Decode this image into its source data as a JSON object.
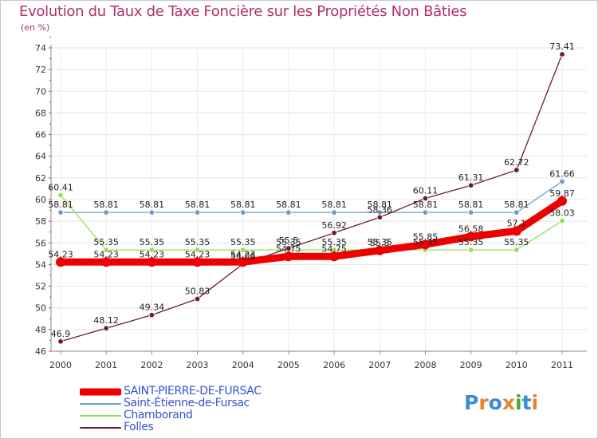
{
  "header": {
    "title": "Evolution du Taux de Taxe Foncière sur les Propriétés Non Bâties",
    "subtitle": "(en %)"
  },
  "chart_data": {
    "type": "line",
    "title": "Evolution du Taux de Taxe Foncière sur les Propriétés Non Bâties",
    "ylabel": "(en %)",
    "xlabel": "",
    "x": [
      "2000",
      "2001",
      "2002",
      "2003",
      "2004",
      "2005",
      "2006",
      "2007",
      "2008",
      "2009",
      "2010",
      "2011"
    ],
    "ylim": [
      46,
      74
    ],
    "yticks": [
      46,
      48,
      50,
      52,
      54,
      56,
      58,
      60,
      62,
      64,
      66,
      68,
      70,
      72,
      74
    ],
    "grid": true,
    "legend_position": "bottom-left",
    "series": [
      {
        "name": "Saint-Étienne-de-Fursac",
        "color": "#6a9ed2",
        "values": [
          58.81,
          58.81,
          58.81,
          58.81,
          58.81,
          58.81,
          58.81,
          58.81,
          58.81,
          58.81,
          58.81,
          61.66
        ],
        "labels": [
          "58.81",
          "58.81",
          "58.81",
          "58.81",
          "58.81",
          "58.81",
          "58.81",
          "58.81",
          "58.81",
          "58.81",
          "58.81",
          "61.66"
        ]
      },
      {
        "name": "Chamborand",
        "color": "#99dd55",
        "values": [
          60.41,
          55.35,
          55.35,
          55.35,
          55.35,
          55.35,
          55.35,
          55.35,
          55.35,
          55.35,
          55.35,
          58.03
        ],
        "labels": [
          "60.41",
          "55.35",
          "55.35",
          "55.35",
          "55.35",
          "55.35",
          "55.35",
          "55.35",
          "55.35",
          "55.35",
          "55.35",
          "58.03"
        ]
      },
      {
        "name": "Folles",
        "color": "#6b1f2a",
        "values": [
          46.9,
          48.12,
          49.34,
          50.83,
          54.06,
          55.5,
          56.92,
          58.36,
          60.11,
          61.31,
          62.72,
          73.41
        ],
        "labels": [
          "46.9",
          "48.12",
          "49.34",
          "50.83",
          "54.06",
          "55.5",
          "56.92",
          "58.36",
          "60.11",
          "61.31",
          "62.72",
          "73.41"
        ]
      },
      {
        "name": "SAINT-PIERRE-DE-FURSAC",
        "color": "#ee0000",
        "values": [
          54.23,
          54.23,
          54.23,
          54.23,
          54.23,
          54.75,
          54.75,
          55.3,
          55.85,
          56.58,
          57.1,
          59.87
        ],
        "labels": [
          "54.23",
          "54.23",
          "54.23",
          "54.23",
          "54.23",
          "54.75",
          "54.75",
          "55.3",
          "55.85",
          "56.58",
          "57.1",
          "59.87"
        ]
      }
    ]
  },
  "legend": {
    "items": [
      {
        "label": "SAINT-PIERRE-DE-FURSAC",
        "color": "#ee0000"
      },
      {
        "label": "Saint-Étienne-de-Fursac",
        "color": "#6a9ed2"
      },
      {
        "label": "Chamborand",
        "color": "#99dd55"
      },
      {
        "label": "Folles",
        "color": "#6b1f2a"
      }
    ],
    "label_color": "#3355cc"
  },
  "logo": {
    "text": "Proxiti",
    "letters": [
      "P",
      "r",
      "o",
      "x",
      "i",
      "t",
      "i"
    ],
    "colors": [
      "#3c8bd6",
      "#e8842c",
      "#3c8bd6",
      "#e8842c",
      "#44aa33",
      "#3c8bd6",
      "#e8842c"
    ]
  }
}
